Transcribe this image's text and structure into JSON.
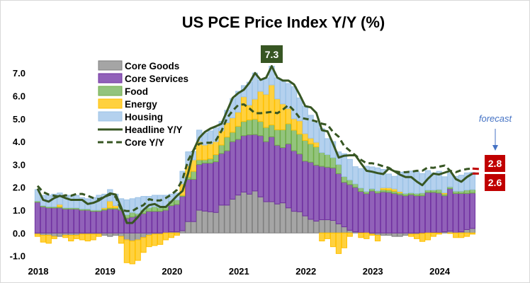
{
  "chart_data": {
    "type": "bar",
    "stacked": true,
    "title": "US PCE Price Index Y/Y (%)",
    "xlabel": "",
    "ylabel": "",
    "ylim": [
      -1.0,
      7.3
    ],
    "y_ticks": [
      "7.0",
      "6.0",
      "5.0",
      "4.0",
      "3.0",
      "2.0",
      "1.0",
      "0.0",
      "-1.0"
    ],
    "y_tick_values": [
      7,
      6,
      5,
      4,
      3,
      2,
      1,
      0,
      -1
    ],
    "x_ticks": [
      "2018",
      "2019",
      "2020",
      "2021",
      "2022",
      "2023",
      "2024"
    ],
    "grid": false,
    "legend_position": "top-left",
    "x": [
      "2018-01",
      "2018-02",
      "2018-03",
      "2018-04",
      "2018-05",
      "2018-06",
      "2018-07",
      "2018-08",
      "2018-09",
      "2018-10",
      "2018-11",
      "2018-12",
      "2019-01",
      "2019-02",
      "2019-03",
      "2019-04",
      "2019-05",
      "2019-06",
      "2019-07",
      "2019-08",
      "2019-09",
      "2019-10",
      "2019-11",
      "2019-12",
      "2020-01",
      "2020-02",
      "2020-03",
      "2020-04",
      "2020-05",
      "2020-06",
      "2020-07",
      "2020-08",
      "2020-09",
      "2020-10",
      "2020-11",
      "2020-12",
      "2021-01",
      "2021-02",
      "2021-03",
      "2021-04",
      "2021-05",
      "2021-06",
      "2021-07",
      "2021-08",
      "2021-09",
      "2021-10",
      "2021-11",
      "2021-12",
      "2022-01",
      "2022-02",
      "2022-03",
      "2022-04",
      "2022-05",
      "2022-06",
      "2022-07",
      "2022-08",
      "2022-09",
      "2022-10",
      "2022-11",
      "2022-12",
      "2023-01",
      "2023-02",
      "2023-03",
      "2023-04",
      "2023-05",
      "2023-06",
      "2023-07",
      "2023-08",
      "2023-09",
      "2023-10",
      "2023-11",
      "2023-12",
      "2024-01",
      "2024-02",
      "2024-03",
      "2024-04",
      "2024-05",
      "2024-06",
      "2024-07"
    ],
    "series": [
      {
        "name": "Core Goods",
        "kind": "bar",
        "color": "#a5a5a5",
        "border": "#7f7f7f",
        "values": [
          -0.05,
          -0.1,
          -0.1,
          -0.15,
          -0.15,
          -0.1,
          -0.1,
          -0.1,
          -0.05,
          -0.05,
          -0.05,
          -0.05,
          -0.1,
          -0.15,
          -0.1,
          -0.15,
          -0.3,
          -0.35,
          -0.3,
          -0.2,
          -0.1,
          -0.05,
          -0.05,
          0.0,
          0.05,
          0.05,
          0.1,
          0.5,
          0.5,
          1.0,
          0.96,
          0.93,
          0.9,
          1.22,
          1.22,
          1.48,
          1.66,
          1.79,
          1.7,
          1.84,
          1.58,
          1.37,
          1.37,
          1.27,
          1.32,
          1.1,
          0.95,
          0.93,
          0.75,
          0.6,
          0.52,
          0.58,
          0.58,
          0.55,
          0.4,
          0.27,
          0.12,
          0.05,
          0.02,
          0.0,
          -0.05,
          -0.1,
          -0.1,
          -0.1,
          -0.15,
          -0.15,
          -0.1,
          -0.05,
          -0.05,
          -0.02,
          0.0,
          0.02,
          0.02,
          0.05,
          0.08,
          0.0,
          0.05,
          0.15,
          0.2
        ]
      },
      {
        "name": "Core Services",
        "kind": "bar",
        "color": "#9161b9",
        "border": "#7030a0",
        "values": [
          1.35,
          1.15,
          1.1,
          1.1,
          1.1,
          1.05,
          1.05,
          1.05,
          1.0,
          1.0,
          0.95,
          0.95,
          1.0,
          1.05,
          1.05,
          1.0,
          0.65,
          0.7,
          0.75,
          0.85,
          0.95,
          0.95,
          0.95,
          1.0,
          1.15,
          1.2,
          1.5,
          1.85,
          1.85,
          2.0,
          2.1,
          2.13,
          2.22,
          2.26,
          2.38,
          2.52,
          2.44,
          2.47,
          2.6,
          2.47,
          2.68,
          2.63,
          2.84,
          2.57,
          2.42,
          2.8,
          2.65,
          2.53,
          2.4,
          2.5,
          2.45,
          2.34,
          2.3,
          2.3,
          2.2,
          1.95,
          2.0,
          1.95,
          1.8,
          1.72,
          1.84,
          1.75,
          1.8,
          1.78,
          1.73,
          1.68,
          1.63,
          1.68,
          1.63,
          1.63,
          1.78,
          1.76,
          1.73,
          1.58,
          1.86,
          1.73,
          1.68,
          1.58,
          1.55
        ]
      },
      {
        "name": "Food",
        "kind": "bar",
        "color": "#93c47d",
        "border": "#70ad47",
        "values": [
          0.05,
          0.05,
          0.05,
          0.05,
          0.05,
          0.05,
          0.05,
          0.05,
          0.05,
          0.05,
          0.05,
          0.05,
          0.05,
          0.05,
          0.05,
          0.05,
          0.15,
          0.2,
          0.1,
          0.15,
          0.15,
          0.2,
          0.15,
          0.15,
          0.2,
          0.2,
          0.05,
          0.1,
          0.35,
          0.2,
          0.14,
          0.19,
          0.31,
          0.37,
          0.6,
          0.41,
          0.57,
          0.62,
          0.65,
          0.67,
          0.62,
          0.62,
          0.52,
          0.68,
          0.78,
          0.88,
          0.9,
          0.87,
          0.9,
          0.8,
          0.8,
          0.6,
          0.55,
          0.45,
          0.4,
          0.25,
          0.2,
          0.15,
          0.15,
          0.1,
          0.1,
          0.1,
          0.1,
          0.1,
          0.1,
          0.08,
          0.1,
          0.08,
          0.1,
          0.12,
          0.1,
          0.1,
          0.15,
          0.08,
          0.08,
          0.1,
          0.1,
          0.15,
          0.15
        ]
      },
      {
        "name": "Energy",
        "kind": "bar",
        "color": "#ffd13f",
        "border": "#ffc000",
        "values": [
          -0.1,
          -0.3,
          -0.35,
          -0.1,
          0.1,
          -0.1,
          -0.25,
          -0.15,
          -0.25,
          -0.3,
          -0.25,
          -0.1,
          0.05,
          0.3,
          0.1,
          -0.3,
          -1.0,
          -1.0,
          -0.9,
          -0.65,
          -0.5,
          -0.5,
          -0.45,
          -0.3,
          -0.2,
          -0.1,
          0.5,
          0.5,
          0.5,
          0.8,
          0.65,
          0.65,
          0.57,
          0.62,
          0.63,
          0.63,
          0.62,
          1.08,
          0.65,
          0.88,
          1.32,
          1.45,
          1.75,
          1.35,
          1.13,
          0.67,
          0.5,
          0.58,
          0.3,
          0.25,
          0.2,
          -0.35,
          -0.25,
          -0.6,
          -0.9,
          -0.65,
          -0.15,
          0.0,
          -0.2,
          -0.25,
          -0.05,
          -0.25,
          0.08,
          0.1,
          0.1,
          0.05,
          0.0,
          -0.1,
          -0.2,
          -0.35,
          -0.3,
          -0.15,
          -0.05,
          0.05,
          -0.02,
          -0.2,
          -0.2,
          -0.15,
          -0.05
        ]
      },
      {
        "name": "Housing",
        "kind": "bar",
        "color": "#b4d1ee",
        "border": "#9dc3e6",
        "values": [
          0.5,
          0.45,
          0.5,
          0.55,
          0.5,
          0.55,
          0.55,
          0.55,
          0.5,
          0.45,
          0.55,
          0.65,
          0.6,
          0.5,
          0.5,
          0.45,
          0.65,
          0.6,
          0.7,
          0.6,
          0.5,
          0.5,
          0.55,
          0.5,
          0.3,
          0.3,
          0.55,
          0.6,
          0.37,
          0.5,
          0.52,
          0.57,
          0.6,
          0.41,
          0.54,
          0.84,
          0.91,
          0.49,
          1.0,
          1.14,
          0.49,
          0.72,
          0.82,
          0.92,
          0.99,
          1.09,
          1.4,
          1.0,
          1.2,
          1.0,
          0.85,
          1.05,
          0.7,
          0.7,
          0.55,
          1.0,
          0.9,
          0.75,
          0.85,
          1.1,
          0.95,
          1.0,
          0.8,
          0.6,
          0.55,
          0.85,
          0.95,
          0.95,
          0.95,
          0.85,
          0.85,
          0.75,
          0.8,
          0.7,
          0.6,
          0.65,
          0.7,
          0.75,
          0.75
        ]
      },
      {
        "name": "Headline Y/Y",
        "kind": "line",
        "color": "#375623",
        "dash": false,
        "values": [
          1.94,
          1.45,
          1.37,
          1.53,
          1.63,
          1.53,
          1.45,
          1.45,
          1.45,
          1.27,
          1.32,
          1.42,
          1.58,
          1.73,
          1.68,
          1.11,
          0.44,
          0.44,
          0.7,
          1.01,
          1.22,
          1.27,
          1.14,
          1.14,
          1.37,
          1.63,
          1.84,
          2.61,
          3.64,
          4.16,
          4.42,
          4.57,
          4.67,
          4.78,
          5.35,
          5.91,
          6.12,
          6.27,
          6.58,
          7.0,
          6.7,
          6.8,
          7.3,
          6.8,
          6.67,
          6.67,
          6.5,
          6.05,
          5.55,
          5.5,
          5.25,
          4.5,
          4.45,
          3.9,
          3.3,
          3.38,
          3.4,
          3.4,
          3.05,
          2.72,
          2.68,
          2.62,
          2.58,
          2.82,
          2.7,
          2.55,
          2.45,
          2.45,
          2.25,
          2.09,
          2.37,
          2.6,
          2.56,
          2.64,
          2.72,
          2.36,
          2.24,
          2.45,
          2.6
        ]
      },
      {
        "name": "Core Y/Y",
        "kind": "line",
        "color": "#375623",
        "dash": true,
        "values": [
          2.06,
          1.79,
          1.68,
          1.63,
          1.58,
          1.65,
          1.63,
          1.71,
          1.71,
          1.63,
          1.53,
          1.48,
          1.58,
          1.68,
          1.58,
          1.01,
          0.96,
          0.96,
          1.11,
          1.22,
          1.48,
          1.42,
          1.42,
          1.53,
          1.68,
          1.89,
          2.35,
          3.18,
          3.64,
          3.9,
          3.95,
          3.95,
          4.06,
          4.47,
          5.04,
          5.35,
          5.6,
          5.63,
          5.45,
          5.24,
          5.24,
          5.27,
          5.3,
          5.24,
          5.4,
          5.6,
          5.35,
          5.04,
          5.0,
          4.95,
          4.88,
          4.78,
          4.73,
          4.42,
          4.21,
          3.8,
          3.6,
          3.4,
          3.2,
          3.05,
          3.05,
          3.0,
          2.92,
          2.85,
          2.7,
          2.66,
          2.66,
          2.68,
          2.72,
          2.72,
          2.87,
          2.85,
          2.9,
          2.95,
          2.72,
          2.66,
          2.75,
          2.8,
          2.82
        ]
      }
    ],
    "forecast": {
      "label": "forecast",
      "core": 2.8,
      "headline": 2.6,
      "core_label": "2.8",
      "headline_label": "2.6",
      "color": "#c00000"
    },
    "annotations": [
      {
        "text": "7.3",
        "series": "Headline Y/Y",
        "at": "2021-07",
        "color": "#375623"
      }
    ]
  }
}
